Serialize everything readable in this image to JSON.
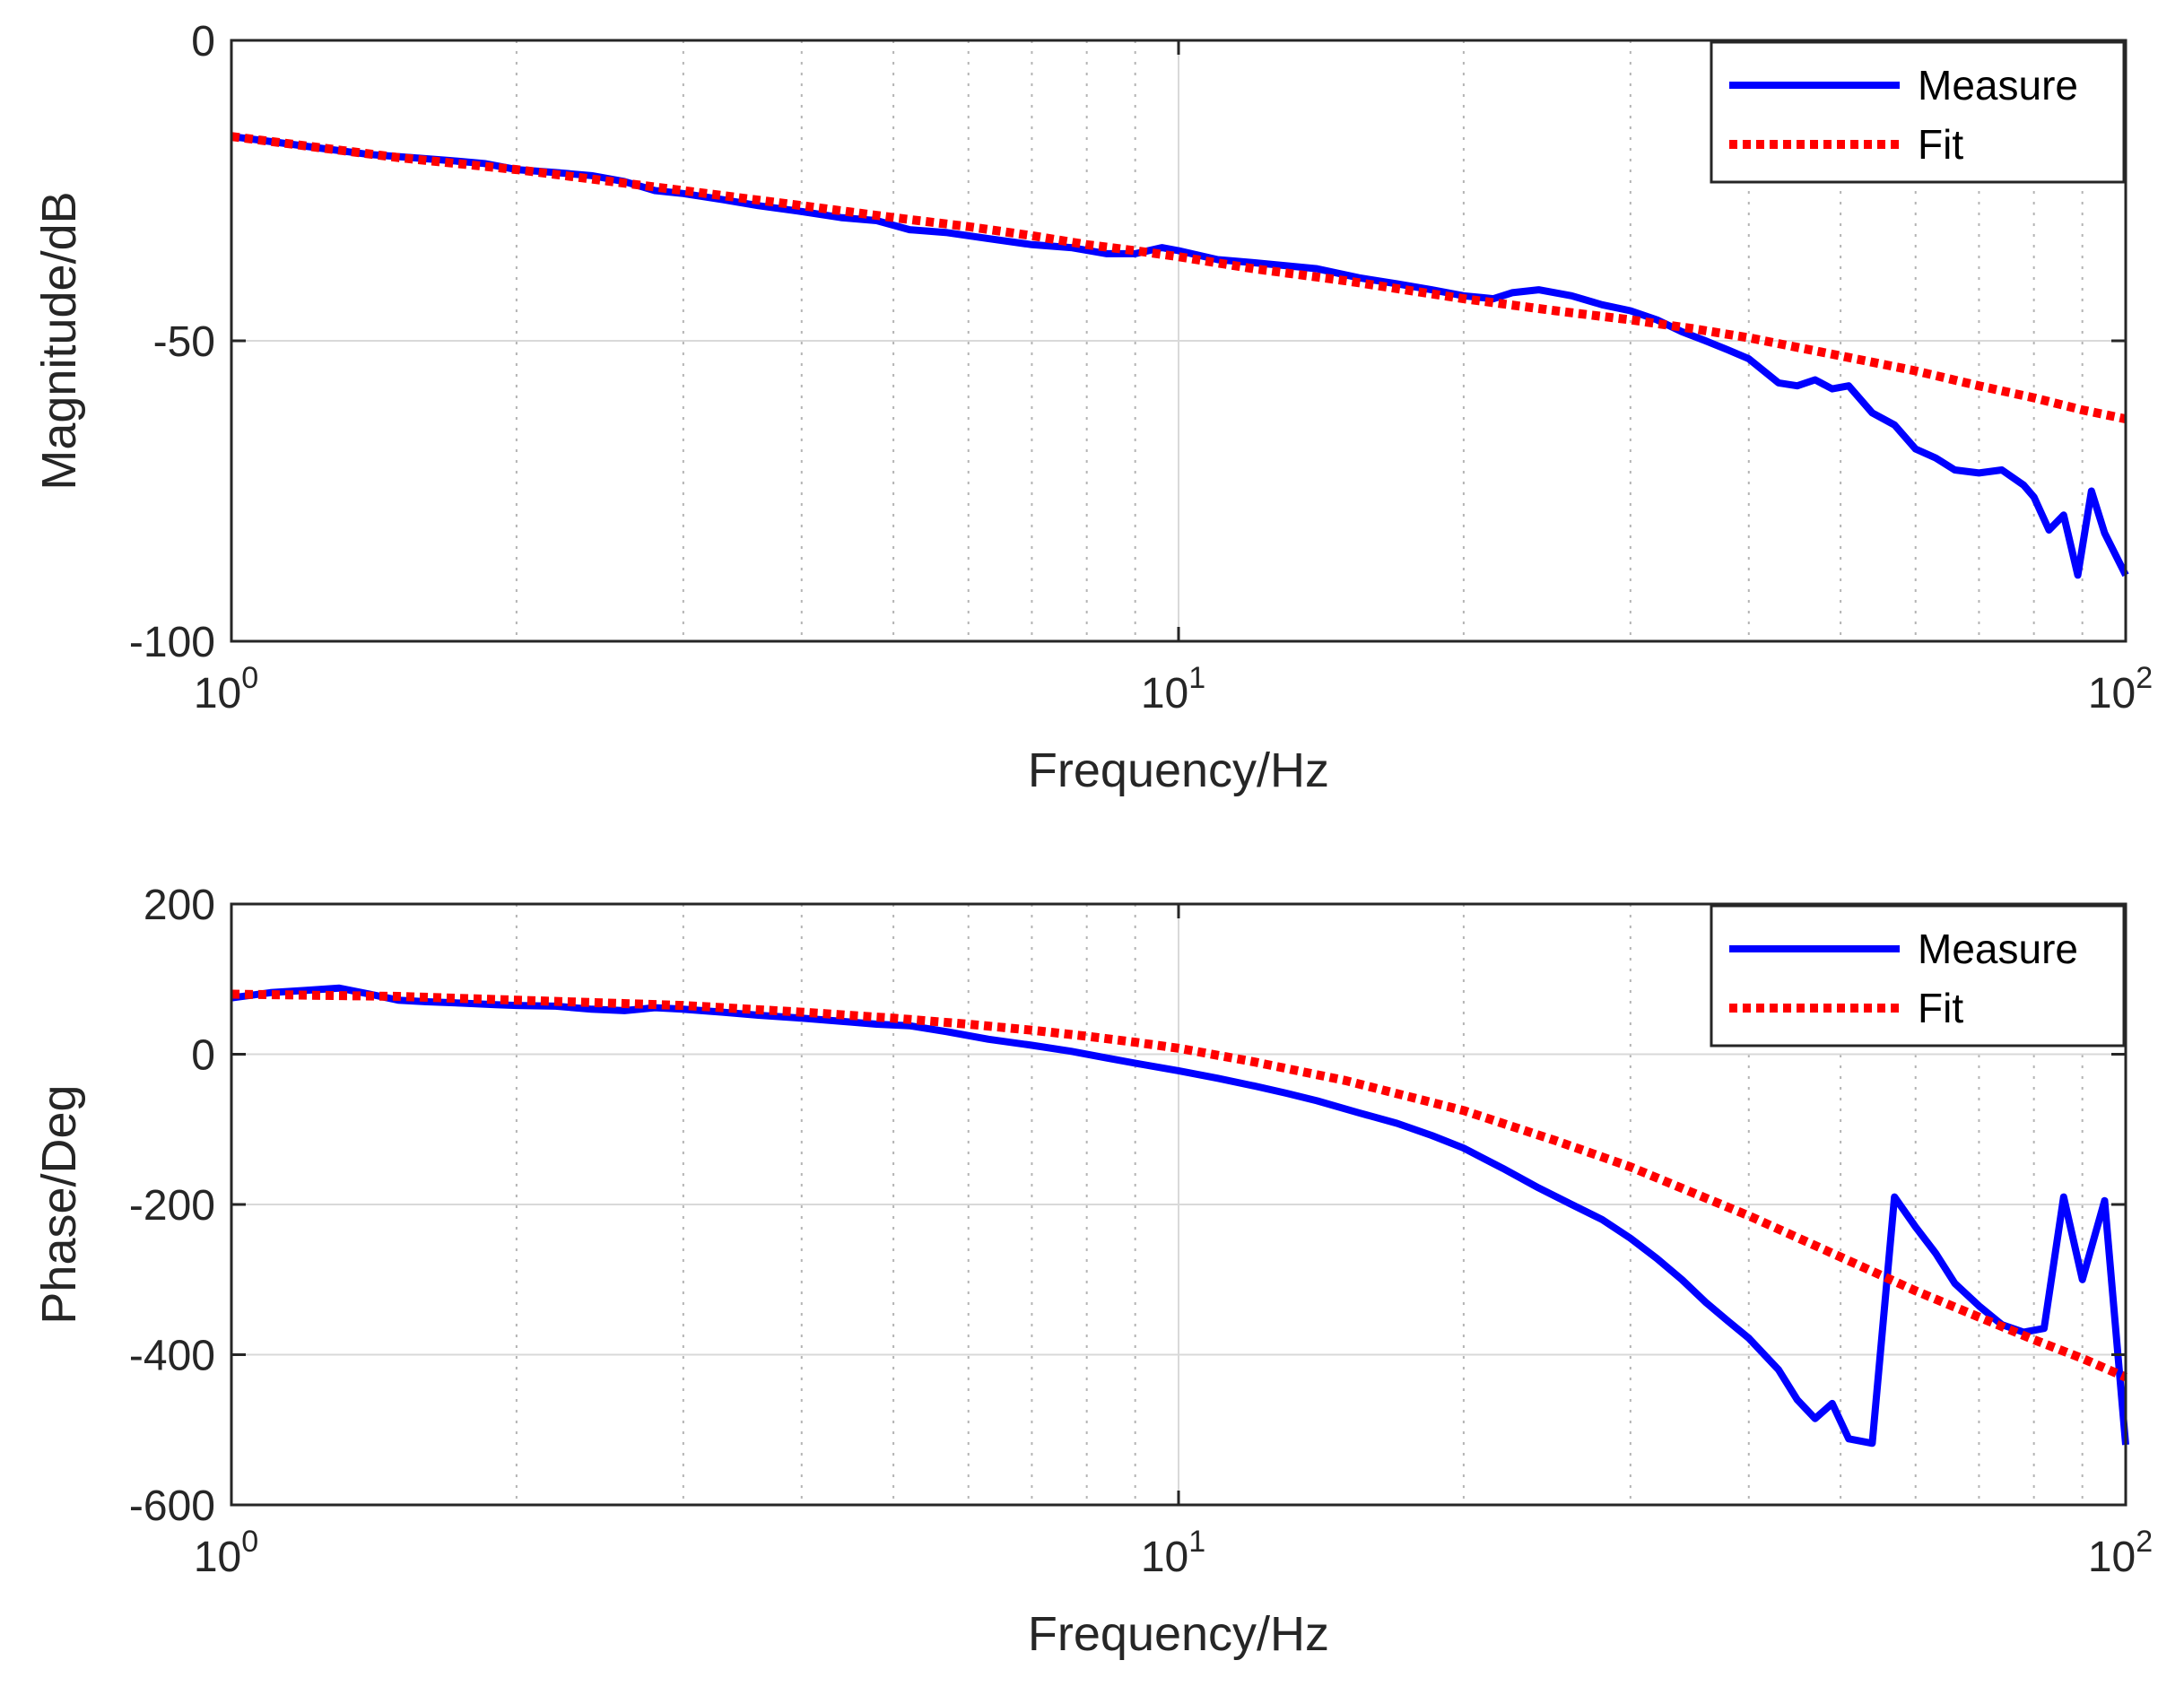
{
  "chart_data": [
    {
      "type": "line",
      "xscale": "log",
      "xlim": [
        1,
        100
      ],
      "ylim": [
        -100,
        0
      ],
      "xlabel": "Frequency/Hz",
      "ylabel": "Magnitude/dB",
      "xticks": [
        {
          "value": 1,
          "base": "10",
          "exp": "0"
        },
        {
          "value": 10,
          "base": "10",
          "exp": "1"
        },
        {
          "value": 100,
          "base": "10",
          "exp": "2"
        }
      ],
      "yticks": [
        {
          "value": 0,
          "label": "0"
        },
        {
          "value": -50,
          "label": "-50"
        },
        {
          "value": -100,
          "label": "-100"
        }
      ],
      "grid": true,
      "legend_position": "top-right",
      "series": [
        {
          "name": "Measure",
          "color": "#0000ff",
          "style": "solid",
          "x": [
            1.0,
            1.12,
            1.25,
            1.4,
            1.55,
            1.7,
            1.85,
            2.0,
            2.2,
            2.4,
            2.6,
            2.8,
            3.0,
            3.3,
            3.6,
            4.0,
            4.4,
            4.8,
            5.2,
            5.7,
            6.3,
            7.0,
            7.7,
            8.4,
            9.0,
            9.6,
            10.0,
            11.0,
            12.0,
            13.0,
            14.0,
            15.5,
            17.0,
            18.5,
            20.0,
            21.5,
            22.5,
            24.0,
            26.0,
            28.0,
            30.0,
            32.0,
            34.0,
            36.0,
            38.0,
            40.0,
            43.0,
            45.0,
            47.0,
            49.0,
            51.0,
            54.0,
            57.0,
            60.0,
            63.0,
            66.0,
            70.0,
            74.0,
            78.0,
            80.0,
            83.0,
            86.0,
            89.0,
            92.0,
            95.0,
            100.0
          ],
          "y": [
            -16,
            -17,
            -18,
            -19,
            -19.5,
            -20,
            -20.5,
            -21.5,
            -22,
            -22.5,
            -23.5,
            -25,
            -25.5,
            -26.5,
            -27.5,
            -28.5,
            -29.5,
            -30,
            -31.5,
            -32,
            -33,
            -34,
            -34.5,
            -35.5,
            -35.5,
            -34.5,
            -35,
            -36.5,
            -37,
            -37.5,
            -38,
            -39.5,
            -40.5,
            -41.5,
            -42.5,
            -43,
            -42,
            -41.5,
            -42.5,
            -44,
            -45,
            -46.5,
            -48.5,
            -50,
            -51.5,
            -53,
            -57,
            -57.5,
            -56.5,
            -58,
            -57.5,
            -62,
            -64,
            -68,
            -69.5,
            -71.5,
            -72,
            -71.5,
            -74,
            -76,
            -81.5,
            -79,
            -89,
            -75,
            -82,
            -89
          ]
        },
        {
          "name": "Fit",
          "color": "#ff0000",
          "style": "dotted",
          "x": [
            1,
            1.5,
            2,
            3,
            4,
            5,
            6,
            7,
            8,
            9,
            10,
            12,
            15,
            20,
            25,
            30,
            35,
            40,
            50,
            60,
            70,
            80,
            90,
            100
          ],
          "y": [
            -16,
            -19.5,
            -21.5,
            -25,
            -27.5,
            -29.5,
            -31,
            -32.5,
            -34,
            -35,
            -36,
            -38,
            -40,
            -43,
            -45,
            -46.5,
            -48,
            -49.5,
            -52.5,
            -55,
            -57.5,
            -59.5,
            -61.5,
            -63
          ]
        }
      ]
    },
    {
      "type": "line",
      "xscale": "log",
      "xlim": [
        1,
        100
      ],
      "ylim": [
        -600,
        200
      ],
      "xlabel": "Frequency/Hz",
      "ylabel": "Phase/Deg",
      "xticks": [
        {
          "value": 1,
          "base": "10",
          "exp": "0"
        },
        {
          "value": 10,
          "base": "10",
          "exp": "1"
        },
        {
          "value": 100,
          "base": "10",
          "exp": "2"
        }
      ],
      "yticks": [
        {
          "value": 200,
          "label": "200"
        },
        {
          "value": 0,
          "label": "0"
        },
        {
          "value": -200,
          "label": "-200"
        },
        {
          "value": -400,
          "label": "-400"
        },
        {
          "value": -600,
          "label": "-600"
        }
      ],
      "grid": true,
      "legend_position": "top-right",
      "series": [
        {
          "name": "Measure",
          "color": "#0000ff",
          "style": "solid",
          "x": [
            1.0,
            1.1,
            1.2,
            1.3,
            1.4,
            1.5,
            1.6,
            1.75,
            1.9,
            2.0,
            2.2,
            2.4,
            2.6,
            2.8,
            3.0,
            3.3,
            3.6,
            4.0,
            4.4,
            4.8,
            5.2,
            5.7,
            6.3,
            7.0,
            7.7,
            8.4,
            9.0,
            10.0,
            11.0,
            12.0,
            13.0,
            14.0,
            15.5,
            17.0,
            18.5,
            20.0,
            22.0,
            24.0,
            26.0,
            28.0,
            30.0,
            32.0,
            34.0,
            36.0,
            38.0,
            40.0,
            43.0,
            45.0,
            47.0,
            49.0,
            51.0,
            54.0,
            57.0,
            60.0,
            63.0,
            66.0,
            70.0,
            74.0,
            78.0,
            82.0,
            86.0,
            90.0,
            95.0,
            100.0
          ],
          "y": [
            75,
            82,
            85,
            88,
            80,
            72,
            70,
            68,
            66,
            65,
            64,
            60,
            58,
            62,
            60,
            56,
            52,
            48,
            44,
            40,
            38,
            30,
            20,
            12,
            4,
            -5,
            -12,
            -22,
            -32,
            -42,
            -52,
            -62,
            -78,
            -92,
            -108,
            -125,
            -152,
            -178,
            -200,
            -220,
            -245,
            -272,
            -300,
            -330,
            -355,
            -378,
            -420,
            -460,
            -485,
            -465,
            -512,
            -518,
            -190,
            -230,
            -265,
            -305,
            -335,
            -360,
            -370,
            -365,
            -190,
            -300,
            -195,
            -520
          ]
        },
        {
          "name": "Fit",
          "color": "#ff0000",
          "style": "dotted",
          "x": [
            1,
            1.5,
            2,
            3,
            4,
            5,
            6,
            7,
            8,
            9,
            10,
            12,
            15,
            20,
            25,
            30,
            35,
            40,
            50,
            60,
            70,
            80,
            90,
            100
          ],
          "y": [
            80,
            77,
            72,
            65,
            56,
            48,
            40,
            32,
            24,
            16,
            8,
            -10,
            -35,
            -75,
            -115,
            -150,
            -185,
            -215,
            -270,
            -315,
            -350,
            -380,
            -405,
            -430
          ]
        }
      ]
    }
  ]
}
